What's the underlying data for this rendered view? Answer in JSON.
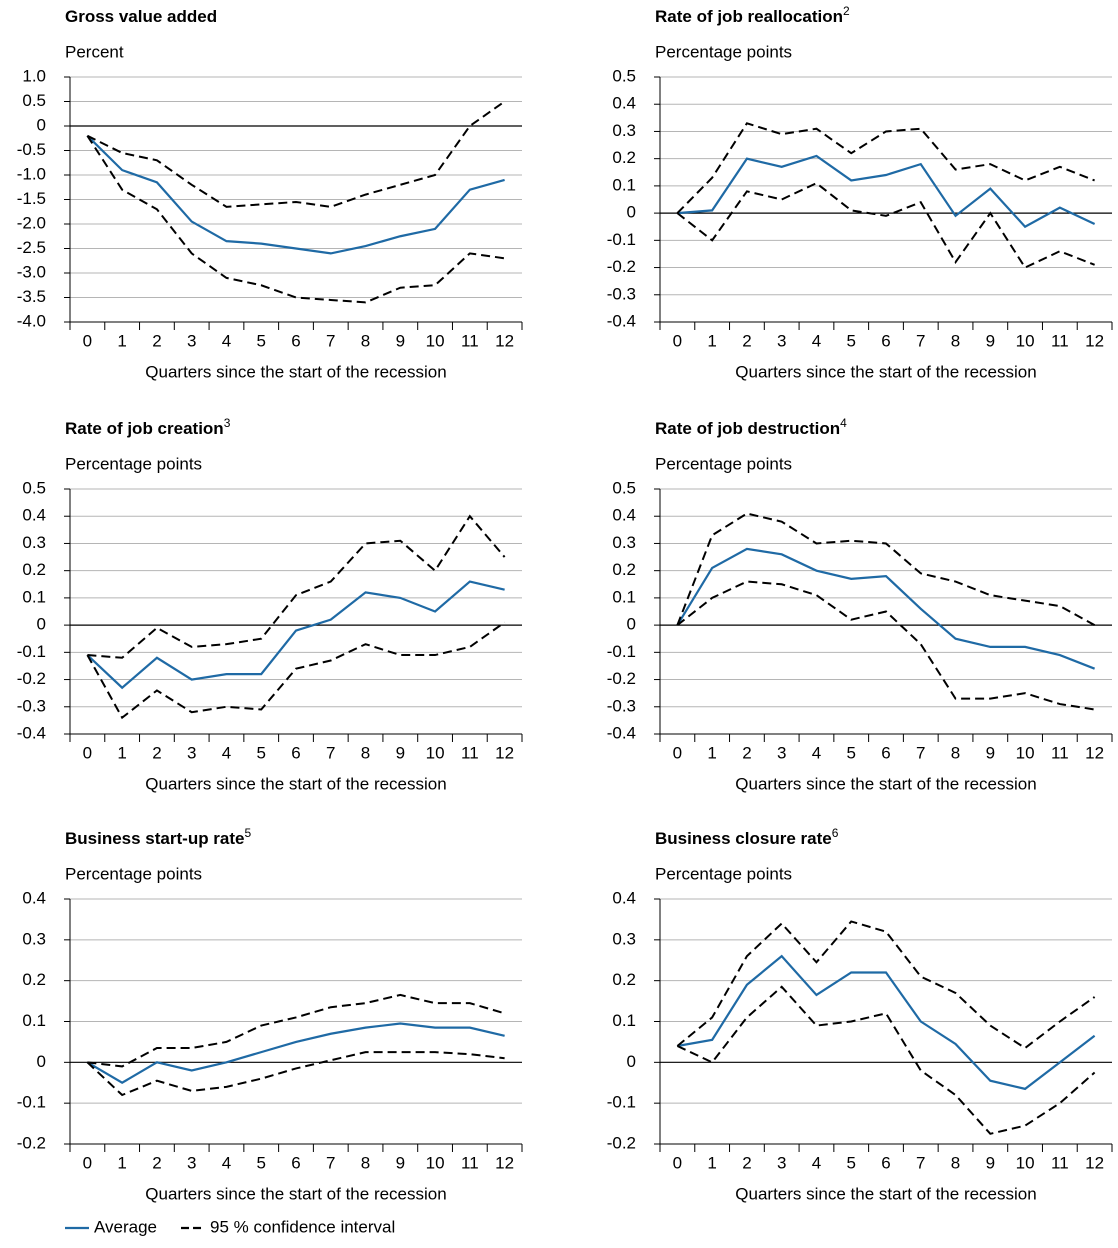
{
  "chart_data": [
    {
      "type": "line",
      "title": "Gross value added",
      "subtitle": "Percent",
      "x_label": "Quarters since the start of the recession",
      "categories": [
        "0",
        "1",
        "2",
        "3",
        "4",
        "5",
        "6",
        "7",
        "8",
        "9",
        "10",
        "11",
        "12"
      ],
      "ylim": [
        -4,
        1
      ],
      "yticks": [
        {
          "value": 1,
          "label": "1.0"
        },
        0.5,
        0,
        -0.5,
        {
          "value": -1,
          "label": "-1.0"
        },
        -1.5,
        {
          "value": -2,
          "label": "-2.0"
        },
        -2.5,
        {
          "value": -3,
          "label": "-3.0"
        },
        -3.5,
        {
          "value": -4,
          "label": "-4.0"
        }
      ],
      "series": [
        {
          "color": "#1f6aa5",
          "dash": false,
          "values": [
            -0.2,
            -0.9,
            -1.15,
            -1.95,
            -2.35,
            -2.4,
            -2.5,
            -2.6,
            -2.45,
            -2.25,
            -2.1,
            -1.3,
            -1.1
          ]
        },
        {
          "color": "#000000",
          "dash": true,
          "values": [
            -0.2,
            -0.55,
            -0.7,
            -1.2,
            -1.65,
            -1.6,
            -1.55,
            -1.65,
            -1.4,
            -1.2,
            -1.0,
            0,
            0.5
          ]
        },
        {
          "color": "#000000",
          "dash": true,
          "values": [
            -0.2,
            -1.3,
            -1.7,
            -2.6,
            -3.1,
            -3.25,
            -3.5,
            -3.55,
            -3.6,
            -3.3,
            -3.25,
            -2.6,
            -2.7
          ]
        }
      ]
    },
    {
      "type": "line",
      "title": "Rate of job reallocation",
      "title_note": "2",
      "subtitle": "Percentage points",
      "x_label": "Quarters since the start of the recession",
      "categories": [
        "0",
        "1",
        "2",
        "3",
        "4",
        "5",
        "6",
        "7",
        "8",
        "9",
        "10",
        "11",
        "12"
      ],
      "ylim": [
        -0.4,
        0.5
      ],
      "yticks": [
        0.5,
        0.4,
        0.3,
        0.2,
        0.1,
        0,
        -0.1,
        -0.2,
        -0.3,
        -0.4
      ],
      "series": [
        {
          "color": "#1f6aa5",
          "dash": false,
          "values": [
            0,
            0.01,
            0.2,
            0.17,
            0.21,
            0.12,
            0.14,
            0.18,
            -0.01,
            0.09,
            -0.05,
            0.02,
            -0.04
          ]
        },
        {
          "color": "#000000",
          "dash": true,
          "values": [
            0,
            0.13,
            0.33,
            0.29,
            0.31,
            0.22,
            0.3,
            0.31,
            0.16,
            0.18,
            0.12,
            0.17,
            0.12
          ]
        },
        {
          "color": "#000000",
          "dash": true,
          "values": [
            0,
            -0.1,
            0.08,
            0.05,
            0.11,
            0.01,
            -0.01,
            0.04,
            -0.18,
            0,
            -0.2,
            -0.14,
            -0.19
          ]
        }
      ]
    },
    {
      "type": "line",
      "title": "Rate of job creation",
      "title_note": "3",
      "subtitle": "Percentage points",
      "x_label": "Quarters since the start of the recession",
      "categories": [
        "0",
        "1",
        "2",
        "3",
        "4",
        "5",
        "6",
        "7",
        "8",
        "9",
        "10",
        "11",
        "12"
      ],
      "ylim": [
        -0.4,
        0.5
      ],
      "yticks": [
        0.5,
        0.4,
        0.3,
        0.2,
        0.1,
        0,
        -0.1,
        -0.2,
        -0.3,
        -0.4
      ],
      "series": [
        {
          "color": "#1f6aa5",
          "dash": false,
          "values": [
            -0.11,
            -0.23,
            -0.12,
            -0.2,
            -0.18,
            -0.18,
            -0.02,
            0.02,
            0.12,
            0.1,
            0.05,
            0.16,
            0.13
          ]
        },
        {
          "color": "#000000",
          "dash": true,
          "values": [
            -0.11,
            -0.12,
            -0.01,
            -0.08,
            -0.07,
            -0.05,
            0.11,
            0.16,
            0.3,
            0.31,
            0.2,
            0.4,
            0.25
          ]
        },
        {
          "color": "#000000",
          "dash": true,
          "values": [
            -0.11,
            -0.34,
            -0.24,
            -0.32,
            -0.3,
            -0.31,
            -0.16,
            -0.13,
            -0.07,
            -0.11,
            -0.11,
            -0.08,
            0.01
          ]
        }
      ]
    },
    {
      "type": "line",
      "title": "Rate of job destruction",
      "title_note": "4",
      "subtitle": "Percentage points",
      "x_label": "Quarters since the start of the recession",
      "categories": [
        "0",
        "1",
        "2",
        "3",
        "4",
        "5",
        "6",
        "7",
        "8",
        "9",
        "10",
        "11",
        "12"
      ],
      "ylim": [
        -0.4,
        0.5
      ],
      "yticks": [
        0.5,
        0.4,
        0.3,
        0.2,
        0.1,
        0,
        -0.1,
        -0.2,
        -0.3,
        -0.4
      ],
      "series": [
        {
          "color": "#1f6aa5",
          "dash": false,
          "values": [
            0,
            0.21,
            0.28,
            0.26,
            0.2,
            0.17,
            0.18,
            0.06,
            -0.05,
            -0.08,
            -0.08,
            -0.11,
            -0.16
          ]
        },
        {
          "color": "#000000",
          "dash": true,
          "values": [
            0,
            0.33,
            0.41,
            0.38,
            0.3,
            0.31,
            0.3,
            0.19,
            0.16,
            0.11,
            0.09,
            0.07,
            0
          ]
        },
        {
          "color": "#000000",
          "dash": true,
          "values": [
            0,
            0.1,
            0.16,
            0.15,
            0.11,
            0.02,
            0.05,
            -0.07,
            -0.27,
            -0.27,
            -0.25,
            -0.29,
            -0.31
          ]
        }
      ]
    },
    {
      "type": "line",
      "title": "Business start-up rate",
      "title_note": "5",
      "subtitle": "Percentage points",
      "x_label": "Quarters since the start of the recession",
      "categories": [
        "0",
        "1",
        "2",
        "3",
        "4",
        "5",
        "6",
        "7",
        "8",
        "9",
        "10",
        "11",
        "12"
      ],
      "ylim": [
        -0.2,
        0.4
      ],
      "yticks": [
        0.4,
        0.3,
        0.2,
        0.1,
        0,
        -0.1,
        -0.2
      ],
      "series": [
        {
          "color": "#1f6aa5",
          "dash": false,
          "values": [
            0,
            -0.05,
            0,
            -0.02,
            0,
            0.025,
            0.05,
            0.07,
            0.085,
            0.095,
            0.085,
            0.085,
            0.065
          ]
        },
        {
          "color": "#000000",
          "dash": true,
          "values": [
            0,
            -0.01,
            0.035,
            0.035,
            0.05,
            0.09,
            0.11,
            0.135,
            0.145,
            0.165,
            0.145,
            0.145,
            0.12
          ]
        },
        {
          "color": "#000000",
          "dash": true,
          "values": [
            0,
            -0.08,
            -0.045,
            -0.07,
            -0.06,
            -0.04,
            -0.015,
            0.005,
            0.025,
            0.025,
            0.025,
            0.02,
            0.01
          ]
        }
      ]
    },
    {
      "type": "line",
      "title": "Business closure rate",
      "title_note": "6",
      "subtitle": "Percentage points",
      "x_label": "Quarters since the start of the recession",
      "categories": [
        "0",
        "1",
        "2",
        "3",
        "4",
        "5",
        "6",
        "7",
        "8",
        "9",
        "10",
        "11",
        "12"
      ],
      "ylim": [
        -0.2,
        0.4
      ],
      "yticks": [
        0.4,
        0.3,
        0.2,
        0.1,
        0,
        -0.1,
        -0.2
      ],
      "series": [
        {
          "color": "#1f6aa5",
          "dash": false,
          "values": [
            0.04,
            0.055,
            0.19,
            0.26,
            0.165,
            0.22,
            0.22,
            0.1,
            0.045,
            -0.045,
            -0.065,
            0,
            0.065
          ]
        },
        {
          "color": "#000000",
          "dash": true,
          "values": [
            0.04,
            0.11,
            0.26,
            0.34,
            0.245,
            0.345,
            0.32,
            0.21,
            0.17,
            0.09,
            0.035,
            0.1,
            0.16
          ]
        },
        {
          "color": "#000000",
          "dash": true,
          "values": [
            0.04,
            0,
            0.11,
            0.185,
            0.09,
            0.1,
            0.12,
            -0.02,
            -0.08,
            -0.175,
            -0.155,
            -0.1,
            -0.025
          ]
        }
      ]
    }
  ],
  "legend": [
    {
      "name": "Average",
      "color": "#1f6aa5",
      "dash": false
    },
    {
      "name": "95 % confidence interval",
      "color": "#000000",
      "dash": true
    }
  ]
}
